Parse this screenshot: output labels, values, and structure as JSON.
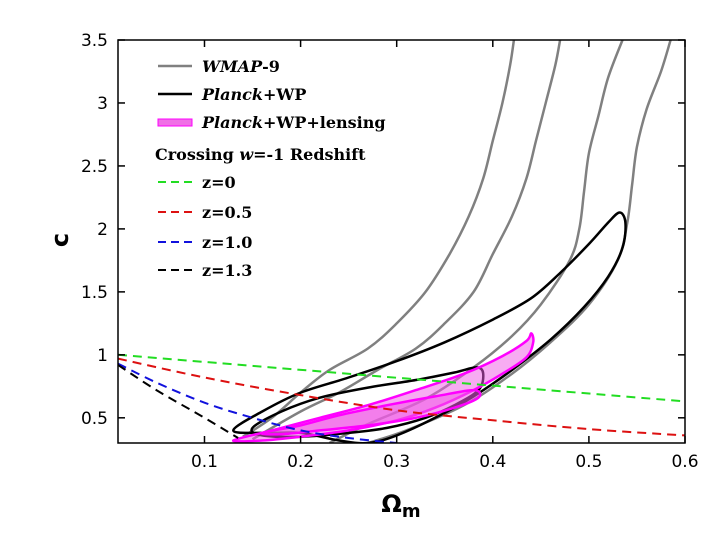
{
  "chart_data": {
    "type": "contour",
    "xlabel": "Ω",
    "xlabel_sub": "m",
    "ylabel": "c",
    "xlim": [
      0.01,
      0.6
    ],
    "ylim": [
      0.3,
      3.5
    ],
    "x_ticks": [
      "0.1",
      "0.2",
      "0.3",
      "0.4",
      "0.5",
      "0.6"
    ],
    "x_tick_values": [
      0.1,
      0.2,
      0.3,
      0.4,
      0.5,
      0.6
    ],
    "y_ticks": [
      "0.5",
      "1",
      "1.5",
      "2",
      "2.5",
      "3",
      "3.5"
    ],
    "y_tick_values": [
      0.5,
      1.0,
      1.5,
      2.0,
      2.5,
      3.0,
      3.5
    ],
    "legend": {
      "placement": "top-left",
      "entries": [
        {
          "italic": "WMAP",
          "text": "-9",
          "color": "#808080",
          "style": "solid"
        },
        {
          "italic": "Planck",
          "text": "+WP",
          "color": "#000000",
          "style": "solid"
        },
        {
          "italic": "Planck",
          "text": "+WP+lensing",
          "color": "#ff00ff",
          "style": "solid"
        }
      ],
      "subtitle": "Crossing w=-1 Redshift",
      "subtitle_parts": [
        "Crossing ",
        "w",
        "=-1 Redshift"
      ],
      "line_entries": [
        {
          "text": "z=0",
          "color": "#22dd22",
          "style": "dashed"
        },
        {
          "text": "z=0.5",
          "color": "#dd1111",
          "style": "dashed"
        },
        {
          "text": "z=1.0",
          "color": "#1111dd",
          "style": "dashed"
        },
        {
          "text": "z=1.3",
          "color": "#000000",
          "style": "dashed"
        }
      ]
    },
    "series": [
      {
        "name": "WMAP-9 contour 1",
        "type": "line",
        "color": "#808080",
        "points": [
          [
            0.14,
            0.35
          ],
          [
            0.17,
            0.5
          ],
          [
            0.2,
            0.7
          ],
          [
            0.23,
            0.88
          ],
          [
            0.27,
            1.05
          ],
          [
            0.3,
            1.25
          ],
          [
            0.33,
            1.5
          ],
          [
            0.355,
            1.8
          ],
          [
            0.375,
            2.1
          ],
          [
            0.39,
            2.4
          ],
          [
            0.4,
            2.7
          ],
          [
            0.41,
            3.0
          ],
          [
            0.418,
            3.3
          ],
          [
            0.422,
            3.5
          ]
        ]
      },
      {
        "name": "WMAP-9 contour 2",
        "type": "line",
        "color": "#808080",
        "points": [
          [
            0.15,
            0.33
          ],
          [
            0.2,
            0.55
          ],
          [
            0.24,
            0.7
          ],
          [
            0.28,
            0.88
          ],
          [
            0.32,
            1.05
          ],
          [
            0.35,
            1.25
          ],
          [
            0.38,
            1.5
          ],
          [
            0.4,
            1.8
          ],
          [
            0.42,
            2.1
          ],
          [
            0.435,
            2.4
          ],
          [
            0.445,
            2.7
          ],
          [
            0.455,
            3.0
          ],
          [
            0.465,
            3.3
          ],
          [
            0.47,
            3.5
          ]
        ]
      },
      {
        "name": "WMAP-9 contour 3",
        "type": "line",
        "color": "#808080",
        "points": [
          [
            0.23,
            0.3
          ],
          [
            0.27,
            0.45
          ],
          [
            0.33,
            0.65
          ],
          [
            0.38,
            0.9
          ],
          [
            0.42,
            1.15
          ],
          [
            0.45,
            1.4
          ],
          [
            0.48,
            1.75
          ],
          [
            0.49,
            2.0
          ],
          [
            0.495,
            2.3
          ],
          [
            0.5,
            2.6
          ],
          [
            0.51,
            2.9
          ],
          [
            0.52,
            3.2
          ],
          [
            0.535,
            3.5
          ]
        ]
      },
      {
        "name": "WMAP-9 contour 4",
        "type": "line",
        "color": "#808080",
        "points": [
          [
            0.27,
            0.3
          ],
          [
            0.31,
            0.4
          ],
          [
            0.37,
            0.6
          ],
          [
            0.42,
            0.85
          ],
          [
            0.46,
            1.1
          ],
          [
            0.5,
            1.4
          ],
          [
            0.53,
            1.75
          ],
          [
            0.54,
            2.05
          ],
          [
            0.545,
            2.35
          ],
          [
            0.55,
            2.65
          ],
          [
            0.56,
            2.95
          ],
          [
            0.575,
            3.25
          ],
          [
            0.585,
            3.5
          ]
        ]
      },
      {
        "name": "Planck+WP outer",
        "type": "closed",
        "color": "#000000",
        "points": [
          [
            0.13,
            0.4
          ],
          [
            0.16,
            0.55
          ],
          [
            0.2,
            0.7
          ],
          [
            0.25,
            0.82
          ],
          [
            0.3,
            0.95
          ],
          [
            0.35,
            1.1
          ],
          [
            0.4,
            1.28
          ],
          [
            0.44,
            1.45
          ],
          [
            0.47,
            1.65
          ],
          [
            0.5,
            1.88
          ],
          [
            0.52,
            2.05
          ],
          [
            0.532,
            2.13
          ],
          [
            0.538,
            2.05
          ],
          [
            0.535,
            1.85
          ],
          [
            0.52,
            1.62
          ],
          [
            0.495,
            1.38
          ],
          [
            0.46,
            1.12
          ],
          [
            0.42,
            0.88
          ],
          [
            0.38,
            0.67
          ],
          [
            0.34,
            0.5
          ],
          [
            0.3,
            0.36
          ],
          [
            0.27,
            0.3
          ],
          [
            0.24,
            0.32
          ],
          [
            0.2,
            0.38
          ],
          [
            0.16,
            0.38
          ]
        ]
      },
      {
        "name": "Planck+WP inner",
        "type": "closed",
        "color": "#000000",
        "points": [
          [
            0.15,
            0.42
          ],
          [
            0.18,
            0.55
          ],
          [
            0.22,
            0.66
          ],
          [
            0.27,
            0.74
          ],
          [
            0.32,
            0.8
          ],
          [
            0.36,
            0.86
          ],
          [
            0.383,
            0.9
          ],
          [
            0.39,
            0.85
          ],
          [
            0.385,
            0.72
          ],
          [
            0.36,
            0.6
          ],
          [
            0.33,
            0.5
          ],
          [
            0.29,
            0.42
          ],
          [
            0.25,
            0.38
          ],
          [
            0.2,
            0.35
          ],
          [
            0.16,
            0.36
          ]
        ]
      },
      {
        "name": "Planck+WP+lensing outer",
        "type": "filled",
        "color": "#ff00ff",
        "fill": "rgba(240,90,230,0.5)",
        "points": [
          [
            0.13,
            0.32
          ],
          [
            0.17,
            0.4
          ],
          [
            0.22,
            0.5
          ],
          [
            0.27,
            0.6
          ],
          [
            0.32,
            0.72
          ],
          [
            0.37,
            0.85
          ],
          [
            0.41,
            0.99
          ],
          [
            0.435,
            1.11
          ],
          [
            0.44,
            1.17
          ],
          [
            0.442,
            1.1
          ],
          [
            0.435,
            0.98
          ],
          [
            0.41,
            0.85
          ],
          [
            0.38,
            0.72
          ],
          [
            0.34,
            0.58
          ],
          [
            0.3,
            0.48
          ],
          [
            0.25,
            0.4
          ],
          [
            0.2,
            0.35
          ],
          [
            0.16,
            0.32
          ]
        ]
      },
      {
        "name": "Planck+WP+lensing inner",
        "type": "filled",
        "color": "#ff00ff",
        "fill": "rgba(240,90,230,0.55)",
        "points": [
          [
            0.16,
            0.38
          ],
          [
            0.2,
            0.44
          ],
          [
            0.24,
            0.52
          ],
          [
            0.29,
            0.6
          ],
          [
            0.34,
            0.67
          ],
          [
            0.38,
            0.72
          ],
          [
            0.385,
            0.66
          ],
          [
            0.36,
            0.58
          ],
          [
            0.32,
            0.5
          ],
          [
            0.27,
            0.44
          ],
          [
            0.22,
            0.4
          ],
          [
            0.18,
            0.37
          ]
        ]
      },
      {
        "name": "z=0",
        "type": "dashed",
        "color": "#22dd22",
        "points": [
          [
            0.01,
            1.0
          ],
          [
            0.6,
            0.63
          ]
        ]
      },
      {
        "name": "z=0.5",
        "type": "dashed",
        "color": "#dd1111",
        "points": [
          [
            0.01,
            0.97
          ],
          [
            0.1,
            0.82
          ],
          [
            0.2,
            0.68
          ],
          [
            0.3,
            0.56
          ],
          [
            0.4,
            0.48
          ],
          [
            0.5,
            0.41
          ],
          [
            0.6,
            0.36
          ]
        ]
      },
      {
        "name": "z=1.0",
        "type": "dashed",
        "color": "#1111dd",
        "points": [
          [
            0.01,
            0.93
          ],
          [
            0.05,
            0.78
          ],
          [
            0.1,
            0.62
          ],
          [
            0.15,
            0.5
          ],
          [
            0.2,
            0.4
          ],
          [
            0.25,
            0.34
          ],
          [
            0.3,
            0.3
          ]
        ]
      },
      {
        "name": "z=1.3",
        "type": "dashed",
        "color": "#000000",
        "points": [
          [
            0.01,
            0.92
          ],
          [
            0.05,
            0.72
          ],
          [
            0.1,
            0.5
          ],
          [
            0.135,
            0.34
          ]
        ]
      }
    ]
  }
}
